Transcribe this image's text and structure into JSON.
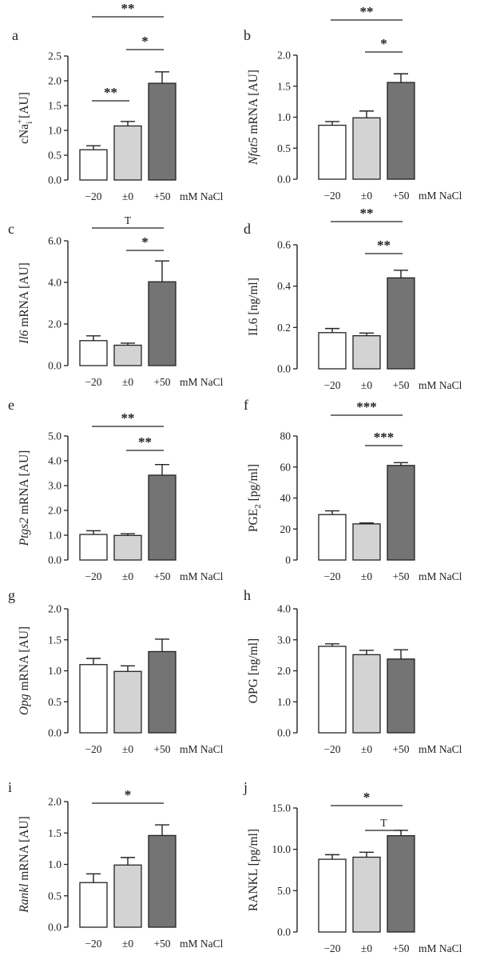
{
  "categories": [
    "−20",
    "±0",
    "+50"
  ],
  "unit_label": "mM NaCl",
  "bar_colors": [
    "#ffffff",
    "#d3d3d3",
    "#747474"
  ],
  "chart_data": [
    {
      "panel": "a",
      "type": "bar",
      "ylabel": {
        "pre": "cNa",
        "sup": "+",
        "sub": "i",
        "post": " [AU]"
      },
      "ylim": [
        0,
        2.5
      ],
      "yticks": [
        "0.0",
        "0.5",
        "1.0",
        "1.5",
        "2.0",
        "2.5"
      ],
      "values": [
        0.61,
        1.09,
        1.95
      ],
      "errors": [
        0.08,
        0.09,
        0.23
      ],
      "sig": [
        {
          "from": 0,
          "to": 2,
          "label": "**"
        },
        {
          "from": 1,
          "to": 2,
          "label": "*"
        },
        {
          "from": 0,
          "to": 1,
          "label": "**"
        }
      ]
    },
    {
      "panel": "b",
      "type": "bar",
      "ylabel": {
        "italic": "Nfat5",
        "post": " mRNA [AU]"
      },
      "ylim": [
        0,
        2.0
      ],
      "yticks": [
        "0.0",
        "0.5",
        "1.0",
        "1.5",
        "2.0"
      ],
      "values": [
        0.87,
        0.99,
        1.56
      ],
      "errors": [
        0.06,
        0.11,
        0.14
      ],
      "sig": [
        {
          "from": 0,
          "to": 2,
          "label": "**"
        },
        {
          "from": 1,
          "to": 2,
          "label": "*"
        }
      ]
    },
    {
      "panel": "c",
      "type": "bar",
      "ylabel": {
        "italic": "Il6",
        "post": " mRNA [AU]"
      },
      "ylim": [
        0,
        6.0
      ],
      "yticks": [
        "0.0",
        "2.0",
        "4.0",
        "6.0"
      ],
      "values": [
        1.2,
        0.98,
        4.03
      ],
      "errors": [
        0.23,
        0.1,
        1.0
      ],
      "sig": [
        {
          "from": 0,
          "to": 2,
          "label": "T"
        },
        {
          "from": 1,
          "to": 2,
          "label": "*"
        }
      ]
    },
    {
      "panel": "d",
      "type": "bar",
      "ylabel": {
        "post": "IL6 [ng/ml]"
      },
      "ylim": [
        0,
        0.6
      ],
      "yticks": [
        "0.0",
        "0.2",
        "0.4",
        "0.6"
      ],
      "values": [
        0.175,
        0.16,
        0.44
      ],
      "errors": [
        0.02,
        0.013,
        0.037
      ],
      "sig": [
        {
          "from": 0,
          "to": 2,
          "label": "**"
        },
        {
          "from": 1,
          "to": 2,
          "label": "**"
        }
      ]
    },
    {
      "panel": "e",
      "type": "bar",
      "ylabel": {
        "italic": "Ptgs2",
        "post": " mRNA [AU]"
      },
      "ylim": [
        0,
        5.0
      ],
      "yticks": [
        "0.0",
        "1.0",
        "2.0",
        "3.0",
        "4.0",
        "5.0"
      ],
      "values": [
        1.03,
        0.99,
        3.42
      ],
      "errors": [
        0.15,
        0.07,
        0.43
      ],
      "sig": [
        {
          "from": 0,
          "to": 2,
          "label": "**"
        },
        {
          "from": 1,
          "to": 2,
          "label": "**"
        }
      ]
    },
    {
      "panel": "f",
      "type": "bar",
      "ylabel": {
        "pre": "PGE",
        "sub": "2",
        "post": " [pg/ml]"
      },
      "ylim": [
        0,
        80
      ],
      "yticks": [
        "0",
        "20",
        "40",
        "60",
        "80"
      ],
      "values": [
        29.3,
        23.3,
        61.0
      ],
      "errors": [
        2.4,
        0.6,
        1.8
      ],
      "sig": [
        {
          "from": 0,
          "to": 2,
          "label": "***"
        },
        {
          "from": 1,
          "to": 2,
          "label": "***"
        }
      ]
    },
    {
      "panel": "g",
      "type": "bar",
      "ylabel": {
        "italic": "Opg",
        "post": " mRNA [AU]"
      },
      "ylim": [
        0,
        2.0
      ],
      "yticks": [
        "0.0",
        "0.5",
        "1.0",
        "1.5",
        "2.0"
      ],
      "values": [
        1.1,
        0.99,
        1.31
      ],
      "errors": [
        0.1,
        0.09,
        0.2
      ],
      "sig": []
    },
    {
      "panel": "h",
      "type": "bar",
      "ylabel": {
        "post": "OPG [ng/ml]"
      },
      "ylim": [
        0,
        4.0
      ],
      "yticks": [
        "0.0",
        "1.0",
        "2.0",
        "3.0",
        "4.0"
      ],
      "values": [
        2.79,
        2.52,
        2.38
      ],
      "errors": [
        0.08,
        0.14,
        0.3
      ],
      "sig": []
    },
    {
      "panel": "i",
      "type": "bar",
      "ylabel": {
        "italic": "Rankl",
        "post": " mRNA [AU]"
      },
      "ylim": [
        0,
        2.0
      ],
      "yticks": [
        "0.0",
        "0.5",
        "1.0",
        "1.5",
        "2.0"
      ],
      "values": [
        0.71,
        0.99,
        1.46
      ],
      "errors": [
        0.14,
        0.12,
        0.17
      ],
      "sig": [
        {
          "from": 0,
          "to": 2,
          "label": "*"
        }
      ]
    },
    {
      "panel": "j",
      "type": "bar",
      "ylabel": {
        "post": "RANKL [pg/ml]"
      },
      "ylim": [
        0,
        15.0
      ],
      "yticks": [
        "0.0",
        "5.0",
        "10.0",
        "15.0"
      ],
      "values": [
        8.8,
        9.05,
        11.65
      ],
      "errors": [
        0.55,
        0.6,
        0.65
      ],
      "sig": [
        {
          "from": 0,
          "to": 2,
          "label": "*"
        },
        {
          "from": 1,
          "to": 2,
          "label": "T"
        }
      ]
    }
  ]
}
